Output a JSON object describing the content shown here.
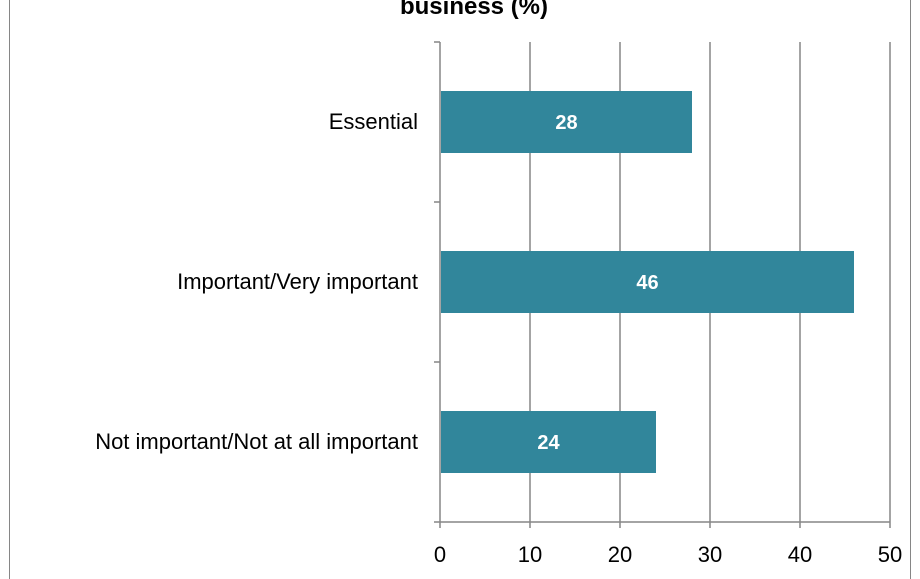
{
  "chart_data": {
    "type": "bar",
    "orientation": "horizontal",
    "title": "business (%)",
    "categories": [
      "Essential",
      "Important/Very important",
      "Not important/Not at all important"
    ],
    "values": [
      28,
      46,
      24
    ],
    "data_labels": [
      "28",
      "46",
      "24"
    ],
    "xlim": [
      0,
      50
    ],
    "xticks": [
      0,
      10,
      20,
      30,
      40,
      50
    ],
    "xtick_labels": [
      "0",
      "10",
      "20",
      "30",
      "40",
      "50"
    ],
    "xlabel": "",
    "ylabel": "",
    "grid": "vertical",
    "legend": "none",
    "bar_color": "#31869B",
    "grid_color": "#868686"
  }
}
